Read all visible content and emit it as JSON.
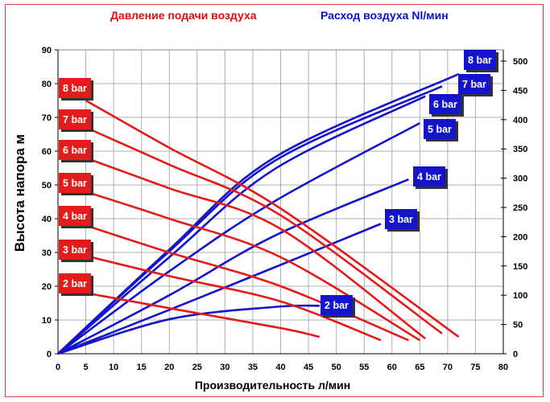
{
  "titles": {
    "red": "Давление подачи воздуха",
    "blue": "Расход воздуха Nl/мин"
  },
  "colors": {
    "red": "#e31b1b",
    "blue": "#1414cc",
    "frame": "#e04040",
    "grid": "#b0b0b0"
  },
  "chart_data": {
    "type": "line",
    "xlabel": "Производительность л/мин",
    "ylabel": "Высота напора м",
    "y2label": "",
    "xlim": [
      0,
      80
    ],
    "ylim": [
      0,
      90
    ],
    "y2lim": [
      0,
      519
    ],
    "xticks": [
      "0",
      "5",
      "10",
      "15",
      "20",
      "25",
      "30",
      "35",
      "40",
      "45",
      "50",
      "55",
      "60",
      "65",
      "70",
      "75",
      "80"
    ],
    "yticks": [
      "0",
      "10",
      "20",
      "30",
      "40",
      "50",
      "60",
      "70",
      "80",
      "90"
    ],
    "y2ticks": [
      "0",
      "50",
      "100",
      "150",
      "200",
      "250",
      "300",
      "350",
      "400",
      "450",
      "500"
    ],
    "grid": true,
    "head_series": [
      {
        "name": "8 bar",
        "axis": "left",
        "points": [
          [
            5,
            75
          ],
          [
            20,
            61
          ],
          [
            40,
            43
          ],
          [
            72,
            5
          ]
        ]
      },
      {
        "name": "7 bar",
        "axis": "left",
        "points": [
          [
            5,
            67
          ],
          [
            20,
            56
          ],
          [
            40,
            41
          ],
          [
            69,
            6
          ]
        ]
      },
      {
        "name": "6 bar",
        "axis": "left",
        "points": [
          [
            5,
            58
          ],
          [
            20,
            49
          ],
          [
            40,
            37
          ],
          [
            66,
            4.5
          ]
        ]
      },
      {
        "name": "5 bar",
        "axis": "left",
        "points": [
          [
            5,
            48
          ],
          [
            20,
            40
          ],
          [
            40,
            28.6
          ],
          [
            65,
            4
          ]
        ]
      },
      {
        "name": "4 bar",
        "axis": "left",
        "points": [
          [
            5,
            38
          ],
          [
            20,
            30
          ],
          [
            40,
            20
          ],
          [
            63,
            4
          ]
        ]
      },
      {
        "name": "3 bar",
        "axis": "left",
        "points": [
          [
            5,
            29
          ],
          [
            20,
            23
          ],
          [
            40,
            15.5
          ],
          [
            58,
            4
          ]
        ]
      },
      {
        "name": "2 bar",
        "axis": "left",
        "points": [
          [
            5,
            18
          ],
          [
            20,
            13.5
          ],
          [
            40,
            7.6
          ],
          [
            47,
            5
          ]
        ]
      }
    ],
    "air_series": [
      {
        "name": "8 bar",
        "axis": "right",
        "points": [
          [
            0,
            0
          ],
          [
            20,
            178
          ],
          [
            39,
            336
          ],
          [
            72,
            478
          ]
        ]
      },
      {
        "name": "7 bar",
        "axis": "right",
        "points": [
          [
            0,
            0
          ],
          [
            20,
            175
          ],
          [
            39,
            330
          ],
          [
            69,
            457
          ]
        ]
      },
      {
        "name": "6 bar",
        "axis": "right",
        "points": [
          [
            0,
            0
          ],
          [
            20,
            165
          ],
          [
            39,
            316
          ],
          [
            66,
            440
          ]
        ]
      },
      {
        "name": "5 bar",
        "axis": "right",
        "points": [
          [
            0,
            0
          ],
          [
            20,
            141
          ],
          [
            39,
            261
          ],
          [
            65,
            394
          ]
        ]
      },
      {
        "name": "4 bar",
        "axis": "right",
        "points": [
          [
            0,
            0
          ],
          [
            20,
            100
          ],
          [
            39,
            202
          ],
          [
            63,
            298
          ]
        ]
      },
      {
        "name": "3 bar",
        "axis": "right",
        "points": [
          [
            0,
            0
          ],
          [
            20,
            75
          ],
          [
            39,
            148
          ],
          [
            58,
            222
          ]
        ]
      },
      {
        "name": "2 bar",
        "axis": "right",
        "points": [
          [
            0,
            0
          ],
          [
            20,
            59
          ],
          [
            39,
            80
          ],
          [
            47,
            82
          ]
        ]
      }
    ]
  }
}
